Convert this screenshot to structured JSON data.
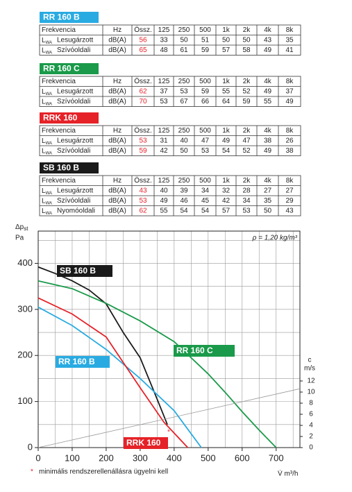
{
  "tables": [
    {
      "name": "RR 160 B",
      "color": "#29abe2",
      "header": [
        "Frekvencia",
        "Hz",
        "Össz.",
        "125",
        "250",
        "500",
        "1k",
        "2k",
        "4k",
        "8k"
      ],
      "rows": [
        {
          "symbol": "L",
          "sub": "WA",
          "label": "Lesugárzott",
          "unit": "dB(A)",
          "total": 56,
          "values": [
            33,
            50,
            51,
            50,
            50,
            43,
            35
          ]
        },
        {
          "symbol": "L",
          "sub": "WA",
          "label": "Szívóoldali",
          "unit": "dB(A)",
          "total": 65,
          "values": [
            48,
            61,
            59,
            57,
            58,
            49,
            41
          ]
        }
      ]
    },
    {
      "name": "RR 160 C",
      "color": "#1a9a4a",
      "header": [
        "Frekvencia",
        "Hz",
        "Össz.",
        "125",
        "250",
        "500",
        "1k",
        "2k",
        "4k",
        "8k"
      ],
      "rows": [
        {
          "symbol": "L",
          "sub": "WA",
          "label": "Lesugárzott",
          "unit": "dB(A)",
          "total": 62,
          "values": [
            37,
            53,
            59,
            55,
            52,
            49,
            37
          ]
        },
        {
          "symbol": "L",
          "sub": "WA",
          "label": "Szívóoldali",
          "unit": "dB(A)",
          "total": 70,
          "values": [
            53,
            67,
            66,
            64,
            59,
            55,
            49
          ]
        }
      ]
    },
    {
      "name": "RRK 160",
      "color": "#e52228",
      "header": [
        "Frekvencia",
        "Hz",
        "Össz.",
        "125",
        "250",
        "500",
        "1k",
        "2k",
        "4k",
        "8k"
      ],
      "rows": [
        {
          "symbol": "L",
          "sub": "WA",
          "label": "Lesugárzott",
          "unit": "dB(A)",
          "total": 53,
          "values": [
            31,
            40,
            47,
            49,
            47,
            38,
            26
          ]
        },
        {
          "symbol": "L",
          "sub": "WA",
          "label": "Szívóoldali",
          "unit": "dB(A)",
          "total": 59,
          "values": [
            42,
            50,
            53,
            54,
            52,
            49,
            38
          ]
        }
      ]
    },
    {
      "name": "SB 160 B",
      "color": "#1a1a1a",
      "header": [
        "Frekvencia",
        "Hz",
        "Össz.",
        "125",
        "250",
        "500",
        "1k",
        "2k",
        "4k",
        "8k"
      ],
      "rows": [
        {
          "symbol": "L",
          "sub": "WA",
          "label": "Lesugárzott",
          "unit": "dB(A)",
          "total": 43,
          "values": [
            40,
            39,
            34,
            32,
            28,
            27,
            27
          ]
        },
        {
          "symbol": "L",
          "sub": "WA",
          "label": "Szívóoldali",
          "unit": "dB(A)",
          "total": 53,
          "values": [
            49,
            46,
            45,
            42,
            34,
            35,
            29
          ]
        },
        {
          "symbol": "L",
          "sub": "WA",
          "label": "Nyomóoldali",
          "unit": "dB(A)",
          "total": 62,
          "values": [
            55,
            54,
            54,
            57,
            53,
            50,
            43
          ]
        }
      ]
    }
  ],
  "chart_data": {
    "type": "line",
    "y_label": "Δp",
    "y_label_sub": "st",
    "y_unit": "Pa",
    "y2_label": "c",
    "y2_unit": "m/s",
    "x_label": "V̇  m³/h",
    "density_note": "ρ = 1,20 kg/m³",
    "note_marker": "*",
    "note": "minimális rendszerellenállásra ügyelni kell",
    "xlim": [
      0,
      770
    ],
    "ylim": [
      0,
      470
    ],
    "y2lim": [
      0,
      39
    ],
    "xticks": [
      0,
      100,
      200,
      300,
      400,
      500,
      600,
      700
    ],
    "yticks": [
      0,
      100,
      200,
      300,
      400
    ],
    "y2ticks": [
      0,
      2,
      4,
      6,
      8,
      10,
      12
    ],
    "grid": true,
    "grid_xticks": [
      50,
      150,
      250,
      350,
      450,
      550,
      650,
      750
    ],
    "grid_yticks": [
      50,
      150,
      250,
      350,
      450
    ],
    "series": [
      {
        "name": "SB 160 B",
        "color": "#1a1a1a",
        "x": [
          0,
          50,
          100,
          150,
          200,
          250,
          300,
          350,
          380
        ],
        "values": [
          392,
          378,
          362,
          342,
          312,
          250,
          195,
          105,
          50
        ]
      },
      {
        "name": "RR 160 C",
        "color": "#1a9a4a",
        "x": [
          0,
          100,
          200,
          300,
          400,
          500,
          550,
          600,
          650,
          700
        ],
        "values": [
          362,
          345,
          313,
          275,
          230,
          160,
          120,
          78,
          38,
          0
        ]
      },
      {
        "name": "RR 160 B",
        "color": "#29abe2",
        "x": [
          0,
          100,
          200,
          300,
          400,
          480
        ],
        "values": [
          305,
          265,
          213,
          150,
          80,
          0
        ]
      },
      {
        "name": "RRK 160",
        "color": "#e52228",
        "x": [
          0,
          100,
          200,
          300,
          370,
          440
        ],
        "values": [
          325,
          290,
          240,
          130,
          55,
          0
        ]
      },
      {
        "color": "#999999",
        "axis": "y2",
        "x": [
          0,
          770
        ],
        "values": [
          0,
          10.6
        ]
      }
    ]
  }
}
